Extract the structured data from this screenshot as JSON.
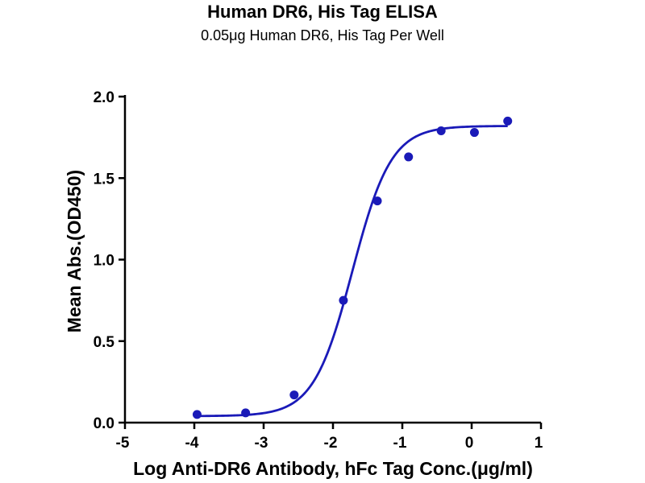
{
  "chart_data": {
    "type": "scatter",
    "title": "Human DR6, His Tag ELISA",
    "subtitle": "0.05μg Human DR6, His Tag Per Well",
    "xlabel": "Log Anti-DR6 Antibody, hFc Tag Conc.(μg/ml)",
    "ylabel": "Mean Abs.(OD450)",
    "xlim": [
      -5,
      1
    ],
    "ylim": [
      0,
      2
    ],
    "x_ticks": [
      -5,
      -4,
      -3,
      -2,
      -1,
      0,
      1
    ],
    "y_ticks": [
      0.0,
      0.5,
      1.0,
      1.5,
      2.0
    ],
    "x_tick_labels": [
      "-5",
      "-4",
      "-3",
      "-2",
      "-1",
      "0",
      "1"
    ],
    "y_tick_labels": [
      "0.0",
      "0.5",
      "1.0",
      "1.5",
      "2.0"
    ],
    "grid": false,
    "series": [
      {
        "x": [
          -3.96,
          -3.26,
          -2.56,
          -1.85,
          -1.36,
          -0.91,
          -0.44,
          0.04,
          0.52
        ],
        "y": [
          0.05,
          0.06,
          0.17,
          0.75,
          1.36,
          1.63,
          1.79,
          1.78,
          1.85
        ],
        "color": "#1a1ab8"
      }
    ],
    "fit": {
      "model": "four-parameter logistic",
      "bottom": 0.04,
      "top": 1.82,
      "log_ec50": -1.72,
      "hill_slope": 1.55,
      "color": "#1a1ab8"
    }
  }
}
